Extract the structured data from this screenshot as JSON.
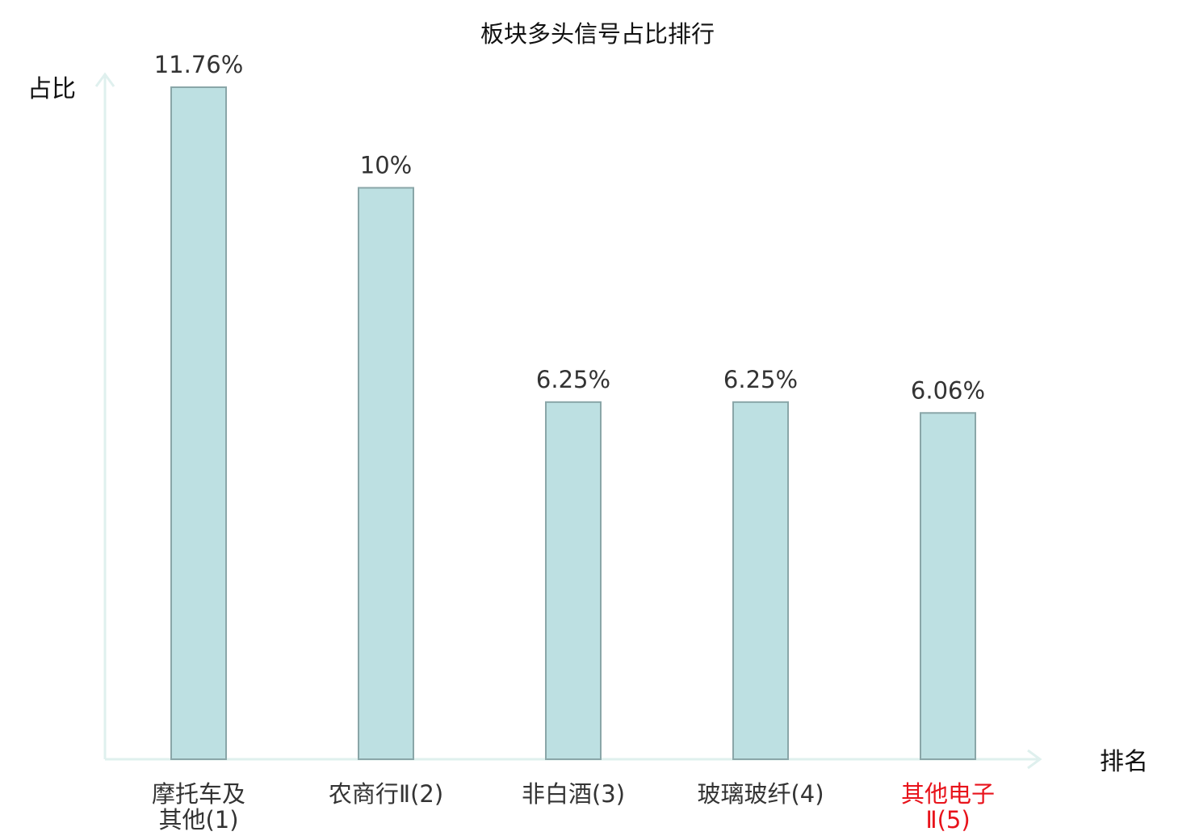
{
  "chart_data": {
    "type": "bar",
    "title": "板块多头信号占比排行",
    "ylabel": "占比",
    "xlabel": "排名",
    "ylim": [
      0,
      12
    ],
    "grid": false,
    "legend": "none",
    "categories": [
      {
        "lines": [
          "摩托车及",
          "其他(1)"
        ],
        "highlight": false
      },
      {
        "lines": [
          "农商行Ⅱ(2)"
        ],
        "highlight": false
      },
      {
        "lines": [
          "非白酒(3)"
        ],
        "highlight": false
      },
      {
        "lines": [
          "玻璃玻纤(4)"
        ],
        "highlight": false
      },
      {
        "lines": [
          "其他电子",
          "Ⅱ(5)"
        ],
        "highlight": true
      }
    ],
    "values": [
      11.76,
      10,
      6.25,
      6.25,
      6.06
    ],
    "value_labels": [
      "11.76%",
      "10%",
      "6.25%",
      "6.25%",
      "6.06%"
    ],
    "colors": {
      "bar_fill": "#bde0e2",
      "bar_stroke": "#8aa6a8",
      "axis": "#dff0ee",
      "label": "#333333",
      "highlight": "#e8131b"
    }
  }
}
